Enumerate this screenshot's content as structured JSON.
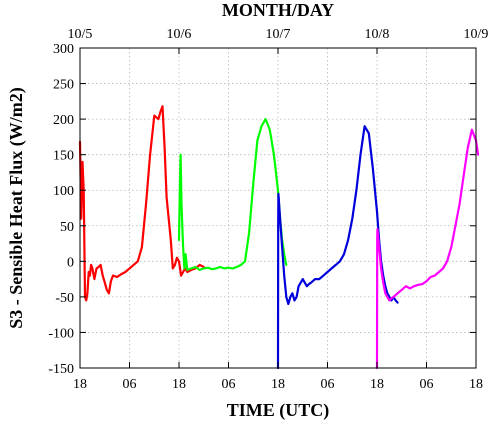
{
  "chart_data": {
    "type": "line",
    "title": "",
    "top_axis_label": "MONTH/DAY",
    "top_ticks": [
      {
        "x": 0,
        "label": "10/5"
      },
      {
        "x": 24,
        "label": "10/6"
      },
      {
        "x": 48,
        "label": "10/7"
      },
      {
        "x": 72,
        "label": "10/8"
      },
      {
        "x": 96,
        "label": "10/9"
      }
    ],
    "xlabel": "TIME (UTC)",
    "bottom_ticks": [
      {
        "x": 0,
        "label": "18"
      },
      {
        "x": 12,
        "label": "06"
      },
      {
        "x": 24,
        "label": "18"
      },
      {
        "x": 36,
        "label": "06"
      },
      {
        "x": 48,
        "label": "18"
      },
      {
        "x": 60,
        "label": "06"
      },
      {
        "x": 72,
        "label": "18"
      },
      {
        "x": 84,
        "label": "06"
      },
      {
        "x": 96,
        "label": "18"
      }
    ],
    "ylabel": "S3 - Sensible Heat Flux (W/m2)",
    "xlim": [
      0,
      96
    ],
    "ylim": [
      -150,
      300
    ],
    "yticks": [
      -150,
      -100,
      -50,
      0,
      50,
      100,
      150,
      200,
      250,
      300
    ],
    "grid": true,
    "colors": {
      "red": "#ff0000",
      "green": "#00ff00",
      "blue": "#0000dd",
      "magenta": "#ff00ff"
    },
    "series": [
      {
        "color": "#ff0000",
        "x": [
          0,
          0.3,
          0.6,
          0.9,
          1.2,
          1.5,
          1.8,
          2.1,
          2.4,
          2.7,
          3.0,
          3.5,
          4,
          4.5,
          5,
          5.5,
          6,
          6.5,
          7,
          7.5,
          8,
          9,
          10,
          11,
          12,
          13,
          14,
          15,
          16,
          17,
          18,
          19,
          19.5,
          20,
          20.5,
          21,
          21.5,
          22,
          22.5,
          23,
          23.5,
          24,
          24.5,
          25,
          25.5,
          26,
          27,
          28,
          29,
          30
        ],
        "y": [
          168,
          60,
          140,
          100,
          -50,
          -55,
          -45,
          -15,
          -20,
          -5,
          -10,
          -25,
          -10,
          -8,
          -5,
          -20,
          -30,
          -40,
          -45,
          -28,
          -20,
          -22,
          -18,
          -15,
          -10,
          -5,
          0,
          20,
          80,
          150,
          205,
          200,
          210,
          218,
          160,
          90,
          60,
          30,
          -10,
          -5,
          5,
          0,
          -20,
          -15,
          -10,
          -15,
          -12,
          -10,
          -5,
          -8
        ]
      },
      {
        "color": "#00ff00",
        "x": [
          24,
          24.2,
          24.4,
          24.6,
          24.8,
          25,
          25.3,
          25.6,
          26,
          27,
          28,
          29,
          30,
          31,
          32,
          33,
          34,
          35,
          36,
          37,
          38,
          39,
          40,
          41,
          42,
          43,
          44,
          45,
          46,
          47,
          48,
          48.5,
          49,
          49.5,
          50
        ],
        "y": [
          30,
          100,
          150,
          80,
          50,
          20,
          -10,
          10,
          -12,
          -10,
          -8,
          -12,
          -10,
          -9,
          -11,
          -10,
          -8,
          -10,
          -9,
          -10,
          -8,
          -5,
          0,
          40,
          110,
          170,
          190,
          200,
          185,
          150,
          100,
          60,
          30,
          10,
          -5
        ]
      },
      {
        "color": "#0000dd",
        "x": [
          48,
          48.05,
          48.1,
          48.5,
          49,
          49.5,
          50,
          50.5,
          51,
          51.5,
          52,
          52.5,
          53,
          53.5,
          54,
          54.5,
          55,
          55.5,
          56,
          57,
          58,
          59,
          60,
          61,
          62,
          63,
          64,
          65,
          66,
          67,
          68,
          69,
          70,
          71,
          72,
          72.5,
          73,
          73.5,
          74,
          74.5,
          75,
          75.5,
          76,
          76.5,
          77
        ],
        "y": [
          -150,
          50,
          95,
          60,
          20,
          -20,
          -50,
          -60,
          -50,
          -45,
          -55,
          -50,
          -35,
          -30,
          -25,
          -30,
          -35,
          -32,
          -30,
          -25,
          -25,
          -20,
          -15,
          -10,
          -5,
          0,
          10,
          30,
          60,
          100,
          150,
          190,
          180,
          130,
          70,
          30,
          0,
          -20,
          -35,
          -45,
          -50,
          -55,
          -50,
          -55,
          -58
        ]
      },
      {
        "color": "#ff00ff",
        "x": [
          72,
          72.05,
          72.1,
          72.5,
          73,
          73.5,
          74,
          74.5,
          75,
          75.5,
          76,
          77,
          78,
          79,
          80,
          81,
          82,
          83,
          84,
          85,
          86,
          87,
          88,
          89,
          90,
          91,
          92,
          93,
          94,
          95,
          96,
          96.5
        ],
        "y": [
          -150,
          30,
          45,
          20,
          -10,
          -30,
          -45,
          -50,
          -55,
          -52,
          -50,
          -45,
          -40,
          -35,
          -38,
          -35,
          -33,
          -32,
          -28,
          -22,
          -20,
          -15,
          -10,
          0,
          20,
          50,
          80,
          120,
          160,
          185,
          170,
          150
        ]
      }
    ]
  }
}
